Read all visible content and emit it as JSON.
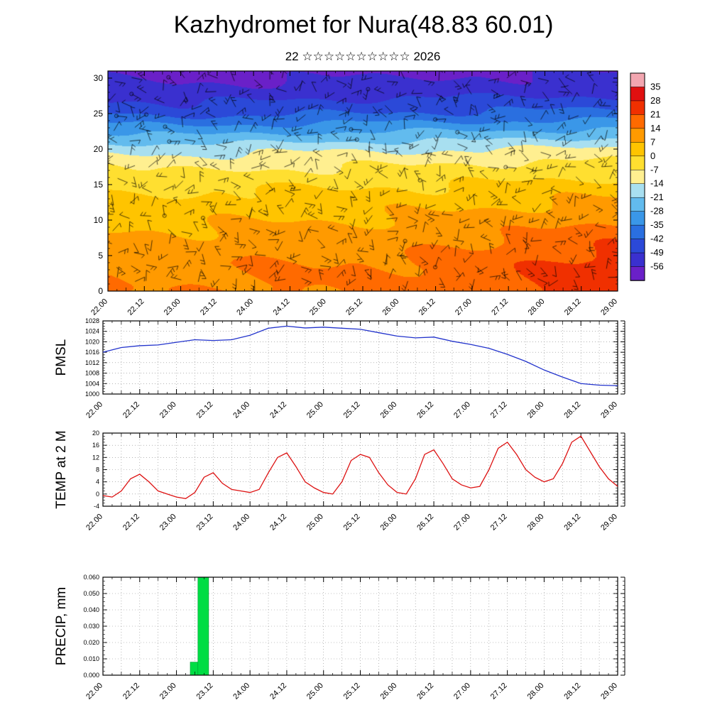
{
  "title": "Kazhydromet for Nura(48.83 60.01)",
  "subtitle": "22 ☆☆☆☆☆☆☆☆☆☆ 2026",
  "time_tick_labels": [
    "22.00",
    "22.12",
    "23.00",
    "23.12",
    "24.00",
    "24.12",
    "25.00",
    "25.12",
    "26.00",
    "26.12",
    "27.00",
    "27.12",
    "28.00",
    "28.12",
    "29.00"
  ],
  "colors": {
    "background": "#ffffff",
    "axis": "#000000",
    "grid": "#888888",
    "pmsl_line": "#2233cc",
    "temp_line": "#dd1111",
    "precip_bar": "#00dd44",
    "precip_bar_edge": "#009933",
    "wind_barb": "#000000"
  },
  "chart_data": [
    {
      "type": "heatmap",
      "name": "temperature-wind-cross-section",
      "title": "Vertical cross-section of temperature with wind barbs",
      "ylim": [
        0,
        31
      ],
      "yticks": [
        0,
        5,
        10,
        15,
        20,
        25,
        30
      ],
      "x_days": [
        22,
        23,
        24,
        25,
        26,
        27,
        28,
        29
      ],
      "levels": [
        0,
        4,
        8,
        12,
        15,
        18,
        20,
        22,
        25,
        28,
        31
      ],
      "values_by_level": [
        [
          13,
          13,
          15,
          15,
          16,
          18,
          22,
          26
        ],
        [
          12,
          12,
          14,
          14,
          15,
          17,
          21,
          25
        ],
        [
          8,
          8,
          9,
          10,
          10,
          12,
          15,
          18
        ],
        [
          3,
          3,
          4,
          4,
          5,
          6,
          8,
          10
        ],
        [
          -2,
          -2,
          -1,
          -1,
          0,
          0,
          2,
          3
        ],
        [
          -9,
          -10,
          -9,
          -8,
          -8,
          -7,
          -6,
          -5
        ],
        [
          -16,
          -17,
          -16,
          -15,
          -15,
          -14,
          -13,
          -12
        ],
        [
          -26,
          -28,
          -27,
          -26,
          -25,
          -25,
          -24,
          -23
        ],
        [
          -42,
          -44,
          -43,
          -42,
          -41,
          -41,
          -40,
          -40
        ],
        [
          -52,
          -54,
          -53,
          -52,
          -52,
          -51,
          -51,
          -50
        ],
        [
          -58,
          -60,
          -59,
          -58,
          -58,
          -57,
          -57,
          -56
        ]
      ],
      "wind_barbs": true,
      "colorbar": {
        "tick_values": [
          35,
          28,
          21,
          14,
          7,
          0,
          -7,
          -14,
          -21,
          -28,
          -35,
          -42,
          -49,
          -56
        ],
        "palette_top_to_bottom": [
          "#f2a6b0",
          "#e01010",
          "#f03000",
          "#ff6a00",
          "#ff9a00",
          "#ffc400",
          "#ffdf30",
          "#ffef90",
          "#a8dff0",
          "#62bbee",
          "#3a97e8",
          "#2a6fe0",
          "#2b49d8",
          "#3a30cf",
          "#6a20c8"
        ]
      }
    },
    {
      "type": "line",
      "name": "PMSL",
      "ylim": [
        1000,
        1028
      ],
      "ytick_step": 4,
      "ytick_minor": 1,
      "x_step_hours": 6,
      "values": [
        1016,
        1017.8,
        1018.5,
        1018.8,
        1019.8,
        1020.8,
        1020.5,
        1020.8,
        1022.5,
        1025.2,
        1026,
        1025.3,
        1025.6,
        1025.2,
        1024.8,
        1023.5,
        1022.2,
        1021.5,
        1021.8,
        1020.2,
        1019,
        1017.5,
        1015.2,
        1012.5,
        1009.2,
        1006.5,
        1004,
        1003.4,
        1003.2
      ]
    },
    {
      "type": "line",
      "name": "TEMP at 2 M",
      "ylim": [
        -4,
        20
      ],
      "ytick_step": 4,
      "ytick_minor": 1,
      "x_step_hours": 3,
      "values": [
        -0.5,
        -1,
        1,
        5,
        6.5,
        4,
        1,
        0,
        -1,
        -1.5,
        0.5,
        5.5,
        7,
        3.5,
        1.5,
        1,
        0.5,
        1.5,
        7,
        12,
        13.5,
        9,
        4,
        2,
        0.5,
        0,
        4,
        11,
        13,
        12,
        7,
        3,
        0.5,
        0,
        5,
        13,
        14.5,
        10,
        5,
        3,
        2,
        2.5,
        8,
        15,
        17,
        13,
        8,
        5.5,
        4,
        5,
        10,
        17,
        19,
        14,
        9,
        5,
        2.5
      ]
    },
    {
      "type": "bar",
      "name": "PRECIP, mm",
      "ylim": [
        0,
        0.06
      ],
      "ytick_step": 0.01,
      "ytick_minor": 0.0025,
      "bars": [
        {
          "start_h": 28.5,
          "end_h": 31,
          "value": 0.008
        },
        {
          "start_h": 31,
          "end_h": 34.5,
          "value": 0.06
        }
      ]
    }
  ]
}
